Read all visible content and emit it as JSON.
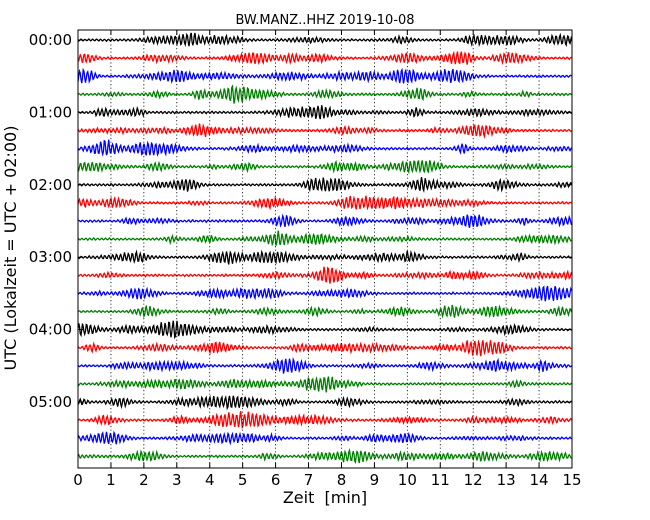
{
  "chart_data": {
    "type": "line",
    "subtype": "seismogram-dayplot",
    "title": "BW.MANZ..HHZ 2019-10-08",
    "xlabel": "Zeit  [min]",
    "ylabel": "UTC (Lokalzeit = UTC + 02:00)",
    "xlim": [
      0,
      15
    ],
    "x_ticks": [
      "0",
      "1",
      "2",
      "3",
      "4",
      "5",
      "6",
      "7",
      "8",
      "9",
      "10",
      "11",
      "12",
      "13",
      "14",
      "15"
    ],
    "y_ticks": [
      "00:00",
      "01:00",
      "02:00",
      "03:00",
      "04:00",
      "05:00"
    ],
    "grid": "vertical dotted at each minute",
    "trace_colors": [
      "#000000",
      "#ff0000",
      "#0000ff",
      "#008000"
    ],
    "trace_count": 24,
    "trace_interval_minutes": 15
  }
}
